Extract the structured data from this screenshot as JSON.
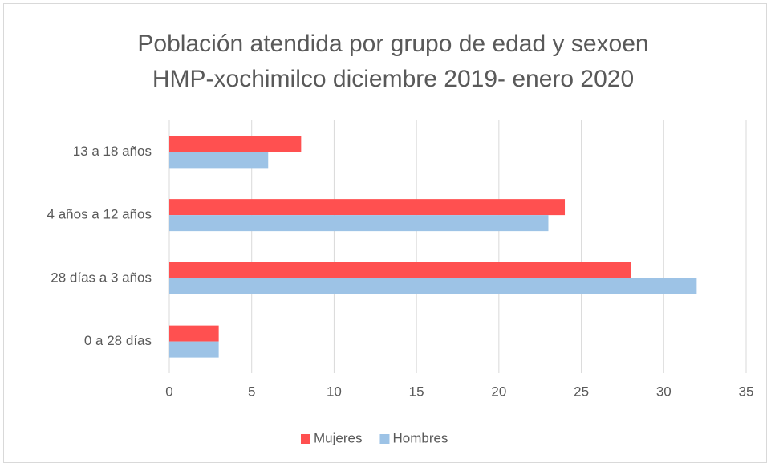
{
  "chart_data": {
    "type": "bar",
    "orientation": "horizontal",
    "title": [
      "Población atendida por grupo de edad y sexoen",
      "HMP-xochimilco diciembre 2019- enero 2020"
    ],
    "categories": [
      "0 a 28 días",
      "28 días a 3 años",
      "4 años a 12 años",
      "13 a 18 años"
    ],
    "series": [
      {
        "name": "Mujeres",
        "color": "#ff5050",
        "values": [
          3,
          28,
          24,
          8
        ]
      },
      {
        "name": "Hombres",
        "color": "#9dc3e6",
        "values": [
          3,
          32,
          23,
          6
        ]
      }
    ],
    "xlim": [
      0,
      35
    ],
    "xticks": [
      0,
      5,
      10,
      15,
      20,
      25,
      30,
      35
    ],
    "grid": true,
    "legend": "bottom"
  }
}
